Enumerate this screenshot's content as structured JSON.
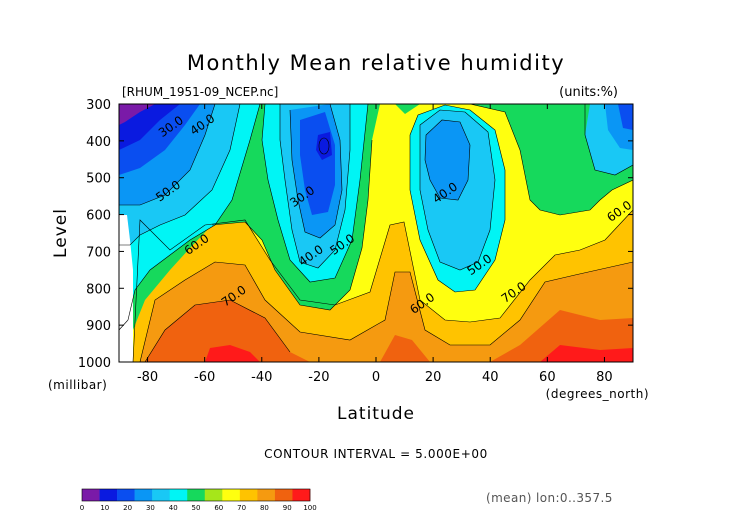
{
  "header": {
    "title": "Monthly Mean relative humidity",
    "file_label": "[RHUM_1951-09_NCEP.nc]",
    "units_label": "(units:%)"
  },
  "footer": {
    "contour_interval": "CONTOUR INTERVAL = 5.000E+00",
    "mean_note": "(mean) lon:0..357.5"
  },
  "chart_data": {
    "type": "heatmap",
    "title": "Monthly Mean relative humidity",
    "xlabel": "Latitude",
    "ylabel": "Level",
    "x_unit": "(degrees_north)",
    "y_unit": "(millibar)",
    "xlim": [
      -90,
      90
    ],
    "ylim": [
      1000,
      300
    ],
    "x_ticks": [
      -80,
      -60,
      -40,
      -20,
      0,
      20,
      40,
      60,
      80
    ],
    "y_ticks": [
      300,
      400,
      500,
      600,
      700,
      800,
      900,
      1000
    ],
    "contour_interval": 5,
    "contour_labels": [
      {
        "text": "30.0",
        "lat": -71,
        "level": 370
      },
      {
        "text": "40.0",
        "lat": -60,
        "level": 365
      },
      {
        "text": "50.0",
        "lat": -72,
        "level": 545
      },
      {
        "text": "60.0",
        "lat": -62,
        "level": 690
      },
      {
        "text": "70.0",
        "lat": -49,
        "level": 830
      },
      {
        "text": "30.0",
        "lat": -25,
        "level": 560
      },
      {
        "text": "40.0",
        "lat": -22,
        "level": 720
      },
      {
        "text": "50.0",
        "lat": -11,
        "level": 690
      },
      {
        "text": "40.0",
        "lat": 25,
        "level": 550
      },
      {
        "text": "50.0",
        "lat": 37,
        "level": 745
      },
      {
        "text": "60.0",
        "lat": 17,
        "level": 850
      },
      {
        "text": "70.0",
        "lat": 49,
        "level": 820
      },
      {
        "text": "60.0",
        "lat": 86,
        "level": 600
      }
    ],
    "colorbar": {
      "labels": [
        "0",
        "10",
        "20",
        "30",
        "40",
        "50",
        "60",
        "70",
        "80",
        "90",
        "100"
      ],
      "colors": [
        "#7a1aa8",
        "#0a1ae0",
        "#0a4ef0",
        "#0a96f5",
        "#19c8f5",
        "#00f5f5",
        "#16d95c",
        "#a6e61a",
        "#ffff0f",
        "#ffc300",
        "#f59a10",
        "#f0620f",
        "#ff1a1a"
      ]
    }
  }
}
